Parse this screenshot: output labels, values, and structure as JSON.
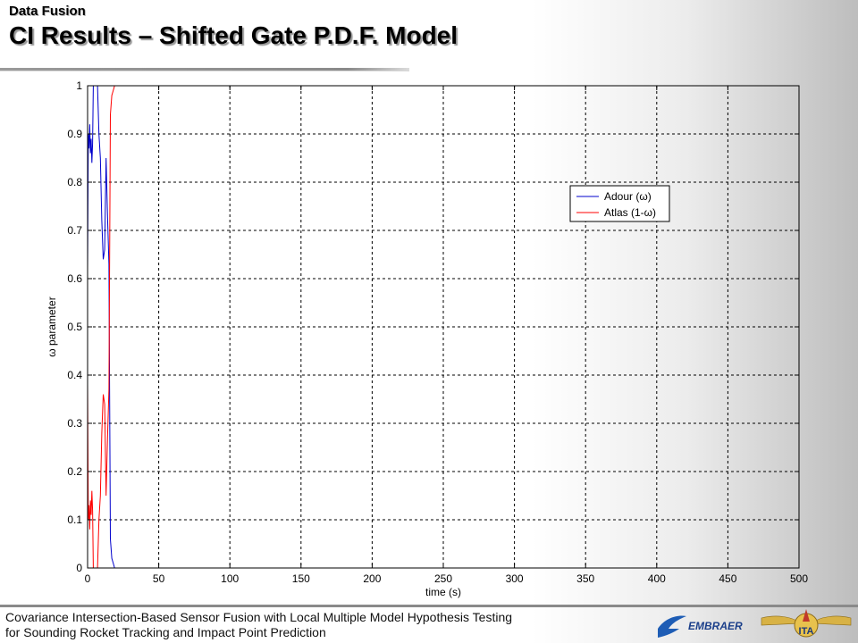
{
  "header": {
    "kicker": "Data Fusion",
    "title": "CI Results – Shifted Gate P.D.F. Model"
  },
  "footer": {
    "line1": "Covariance Intersection-Based Sensor Fusion with Local Multiple Model Hypothesis Testing",
    "line2": "for Sounding Rocket Tracking and Impact Point Prediction",
    "logo_embraer": "EMBRAER",
    "logo_ita": "ITA"
  },
  "colors": {
    "adour": "#0000cc",
    "atlas": "#ff0000",
    "grid": "#000000"
  },
  "chart_data": {
    "type": "line",
    "title": "",
    "xlabel": "time (s)",
    "ylabel": "ω parameter",
    "xlim": [
      0,
      500
    ],
    "ylim": [
      0,
      1
    ],
    "xticks": [
      0,
      50,
      100,
      150,
      200,
      250,
      300,
      350,
      400,
      450,
      500
    ],
    "yticks": [
      0,
      0.1,
      0.2,
      0.3,
      0.4,
      0.5,
      0.6,
      0.7,
      0.8,
      0.9,
      1
    ],
    "ytick_labels": [
      "0",
      "0.1",
      "0.2",
      "0.3",
      "0.4",
      "0.5",
      "0.6",
      "0.7",
      "0.8",
      "0.9",
      "1"
    ],
    "grid": true,
    "legend_position": "top-right",
    "series": [
      {
        "name": "Adour (ω)",
        "color": "#0000cc",
        "x": [
          0,
          0.5,
          1,
          1.5,
          2,
          2.5,
          3,
          3.5,
          4,
          4.5,
          5,
          6,
          7,
          8,
          9,
          10,
          11,
          12,
          13,
          14,
          15,
          16,
          17,
          18,
          19,
          500
        ],
        "y": [
          0.62,
          0.9,
          0.87,
          0.92,
          0.86,
          0.89,
          0.84,
          0.88,
          1,
          1,
          1,
          1,
          1,
          0.9,
          0.85,
          0.72,
          0.64,
          0.66,
          0.85,
          0.73,
          0.63,
          0.06,
          0.02,
          0.01,
          0,
          0
        ]
      },
      {
        "name": "Atlas (1-ω)",
        "color": "#ff0000",
        "x": [
          0,
          0.5,
          1,
          1.5,
          2,
          2.5,
          3,
          3.5,
          4,
          4.5,
          5,
          6,
          7,
          8,
          9,
          10,
          11,
          12,
          13,
          14,
          15,
          16,
          17,
          18,
          19,
          500
        ],
        "y": [
          0.38,
          0.1,
          0.13,
          0.08,
          0.14,
          0.11,
          0.16,
          0.12,
          0,
          0,
          0,
          0,
          0,
          0.1,
          0.15,
          0.28,
          0.36,
          0.34,
          0.15,
          0.27,
          0.37,
          0.94,
          0.98,
          0.99,
          1,
          1
        ]
      }
    ]
  }
}
